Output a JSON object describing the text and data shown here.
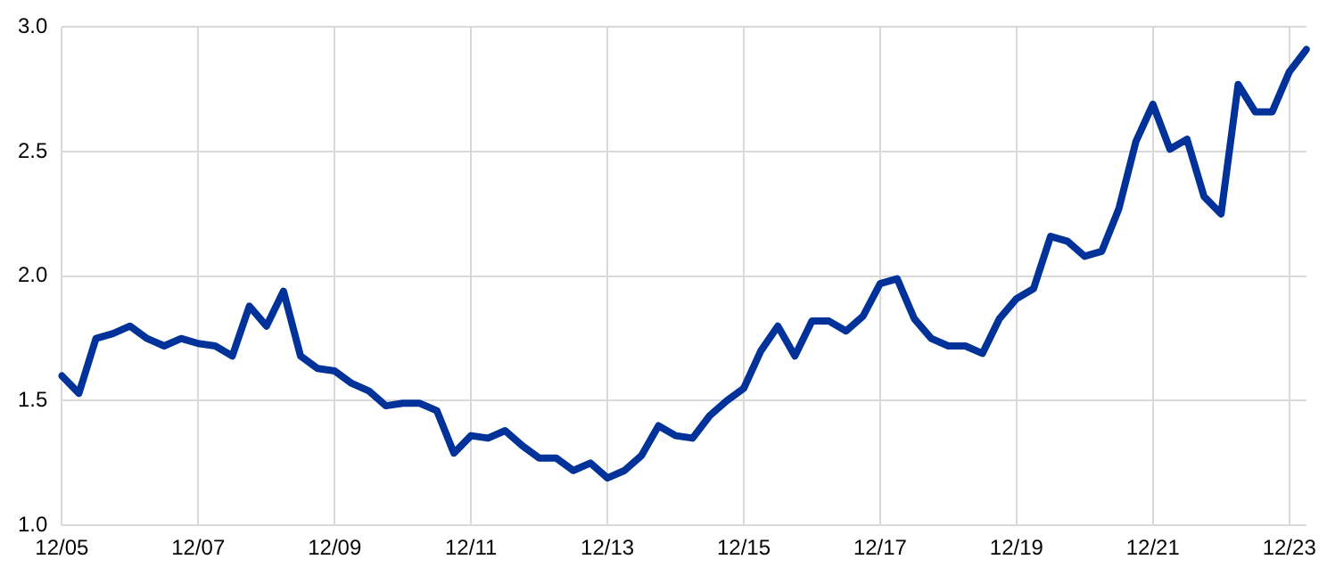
{
  "chart_data": {
    "type": "line",
    "categories": [
      "12/05",
      null,
      null,
      null,
      null,
      null,
      null,
      null,
      "12/07",
      null,
      null,
      null,
      null,
      null,
      null,
      null,
      "12/09",
      null,
      null,
      null,
      null,
      null,
      null,
      null,
      "12/11",
      null,
      null,
      null,
      null,
      null,
      null,
      null,
      "12/13",
      null,
      null,
      null,
      null,
      null,
      null,
      null,
      "12/15",
      null,
      null,
      null,
      null,
      null,
      null,
      null,
      "12/17",
      null,
      null,
      null,
      null,
      null,
      null,
      null,
      "12/19",
      null,
      null,
      null,
      null,
      null,
      null,
      null,
      "12/21",
      null,
      null,
      null,
      null,
      null,
      null,
      null,
      "12/23",
      null
    ],
    "series": [
      {
        "color": "#003299",
        "values": [
          1.6,
          1.53,
          1.75,
          1.77,
          1.8,
          1.75,
          1.72,
          1.75,
          1.73,
          1.72,
          1.68,
          1.88,
          1.8,
          1.94,
          1.68,
          1.63,
          1.62,
          1.57,
          1.54,
          1.48,
          1.49,
          1.49,
          1.46,
          1.29,
          1.36,
          1.35,
          1.38,
          1.32,
          1.27,
          1.27,
          1.22,
          1.25,
          1.19,
          1.22,
          1.28,
          1.4,
          1.36,
          1.35,
          1.44,
          1.5,
          1.55,
          1.7,
          1.8,
          1.68,
          1.82,
          1.82,
          1.78,
          1.84,
          1.97,
          1.99,
          1.83,
          1.75,
          1.72,
          1.72,
          1.69,
          1.83,
          1.91,
          1.95,
          2.16,
          2.14,
          2.08,
          2.1,
          2.27,
          2.54,
          2.69,
          2.51,
          2.55,
          2.32,
          2.25,
          2.77,
          2.66,
          2.66,
          2.82,
          2.91
        ]
      }
    ],
    "ylim": [
      1.0,
      3.0
    ],
    "yticks": [
      {
        "value": 1.0,
        "label": "1.0"
      },
      {
        "value": 1.5,
        "label": "1.5"
      },
      {
        "value": 2.0,
        "label": "2.0"
      },
      {
        "value": 2.5,
        "label": "2.5"
      },
      {
        "value": 3.0,
        "label": "3.0"
      }
    ],
    "grid": true,
    "legend": false,
    "marker": "none",
    "line_style": "solid"
  }
}
